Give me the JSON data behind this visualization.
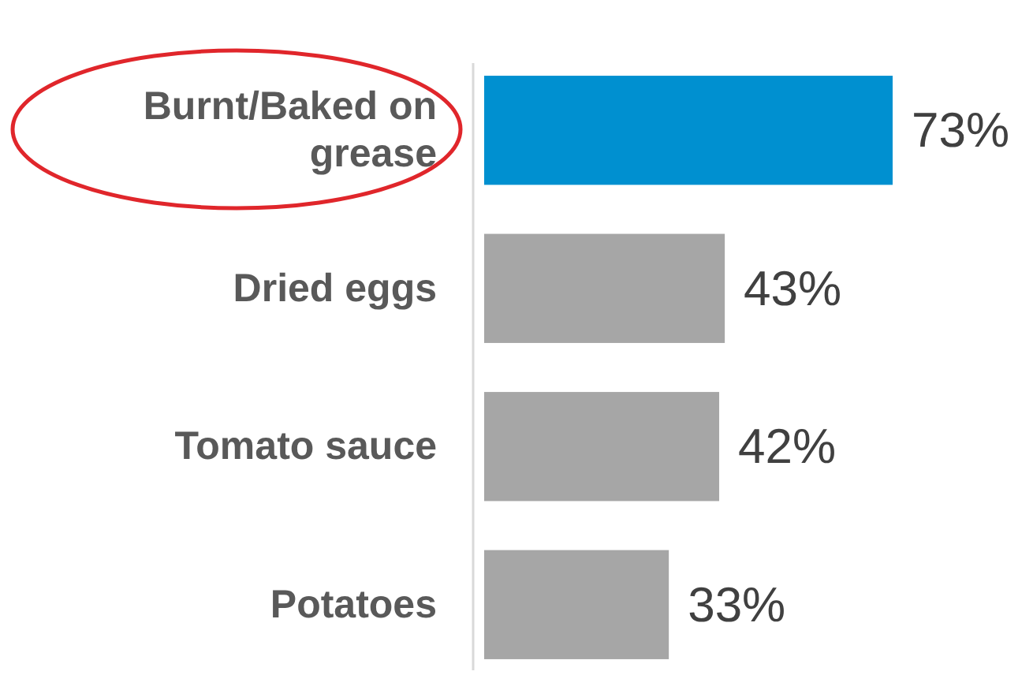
{
  "chart_data": {
    "type": "bar",
    "orientation": "horizontal",
    "categories": [
      "Burnt/Baked on grease",
      "Dried eggs",
      "Tomato sauce",
      "Potatoes"
    ],
    "values": [
      73,
      43,
      42,
      33
    ],
    "colors": [
      "#0090d0",
      "#a6a6a6",
      "#a6a6a6",
      "#a6a6a6"
    ],
    "value_labels": [
      "73%",
      "43%",
      "42%",
      "33%"
    ]
  }
}
